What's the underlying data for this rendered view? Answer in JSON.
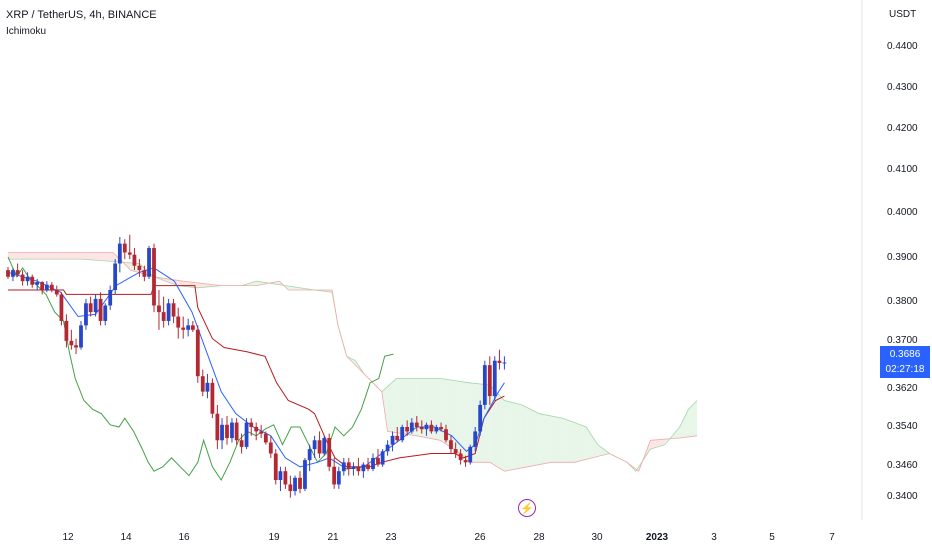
{
  "header": {
    "title": "XRP / TetherUS, 4h, BINANCE",
    "indicator": "Ichimoku"
  },
  "axis": {
    "unit": "USDT",
    "y_ticks": [
      "0.4400",
      "0.4300",
      "0.4200",
      "0.4100",
      "0.4000",
      "0.3900",
      "0.3800",
      "0.3700",
      "0.3620",
      "0.3540",
      "0.3460",
      "0.3400"
    ],
    "x_ticks": [
      "12",
      "14",
      "16",
      "19",
      "21",
      "23",
      "26",
      "28",
      "30",
      "2023",
      "3",
      "5",
      "7"
    ]
  },
  "price_tag": {
    "price": "0.3686",
    "countdown": "02:27:18"
  },
  "colors": {
    "up": "#2847c8",
    "down": "#b22833",
    "tenkan": "#2962ff",
    "kijun": "#b71c1c",
    "chikou": "#43a047",
    "cloud_bull": "#e8f5e9",
    "cloud_bear": "#fde5e5",
    "tag": "#2962ff"
  },
  "chart_data": {
    "type": "candlestick",
    "symbol": "XRP / TetherUS",
    "interval": "4h",
    "exchange": "BINANCE",
    "indicator": "Ichimoku",
    "ylim": [
      0.336,
      0.446
    ],
    "x_day_ticks": [
      {
        "label": "12",
        "x": 12
      },
      {
        "label": "14",
        "x": 14
      },
      {
        "label": "16",
        "x": 16
      },
      {
        "label": "19",
        "x": 19
      },
      {
        "label": "21",
        "x": 21
      },
      {
        "label": "23",
        "x": 23
      },
      {
        "label": "26",
        "x": 26
      },
      {
        "label": "28",
        "x": 28
      },
      {
        "label": "30",
        "x": 30
      },
      {
        "label": "2023",
        "x": 32
      },
      {
        "label": "3",
        "x": 34
      },
      {
        "label": "5",
        "x": 36
      },
      {
        "label": "7",
        "x": 38
      }
    ],
    "candles": [
      [
        10.0,
        0.3895,
        0.3902,
        0.3875,
        0.388
      ],
      [
        10.17,
        0.388,
        0.39,
        0.387,
        0.3895
      ],
      [
        10.33,
        0.3895,
        0.391,
        0.388,
        0.3885
      ],
      [
        10.5,
        0.3885,
        0.3895,
        0.386,
        0.387
      ],
      [
        10.67,
        0.387,
        0.389,
        0.386,
        0.388
      ],
      [
        10.83,
        0.388,
        0.3885,
        0.3855,
        0.3862
      ],
      [
        11.0,
        0.3862,
        0.3875,
        0.385,
        0.3868
      ],
      [
        11.17,
        0.3868,
        0.387,
        0.384,
        0.385
      ],
      [
        11.33,
        0.385,
        0.387,
        0.3845,
        0.3862
      ],
      [
        11.5,
        0.3862,
        0.3868,
        0.3845,
        0.385
      ],
      [
        11.67,
        0.385,
        0.386,
        0.3835,
        0.384
      ],
      [
        11.83,
        0.384,
        0.3845,
        0.377,
        0.378
      ],
      [
        12.0,
        0.378,
        0.3795,
        0.372,
        0.3735
      ],
      [
        12.17,
        0.3735,
        0.376,
        0.3715,
        0.3725
      ],
      [
        12.33,
        0.3725,
        0.374,
        0.3705,
        0.372
      ],
      [
        12.5,
        0.372,
        0.378,
        0.3715,
        0.377
      ],
      [
        12.67,
        0.377,
        0.383,
        0.376,
        0.382
      ],
      [
        12.83,
        0.382,
        0.3835,
        0.379,
        0.38
      ],
      [
        13.0,
        0.38,
        0.384,
        0.379,
        0.383
      ],
      [
        13.17,
        0.383,
        0.3845,
        0.377,
        0.378
      ],
      [
        13.33,
        0.378,
        0.382,
        0.377,
        0.3815
      ],
      [
        13.5,
        0.3815,
        0.386,
        0.3805,
        0.385
      ],
      [
        13.67,
        0.385,
        0.392,
        0.384,
        0.391
      ],
      [
        13.83,
        0.391,
        0.397,
        0.389,
        0.3955
      ],
      [
        14.0,
        0.3955,
        0.3965,
        0.392,
        0.3935
      ],
      [
        14.17,
        0.3935,
        0.3975,
        0.392,
        0.393
      ],
      [
        14.33,
        0.393,
        0.3945,
        0.3895,
        0.3905
      ],
      [
        14.5,
        0.3905,
        0.392,
        0.388,
        0.3895
      ],
      [
        14.67,
        0.3895,
        0.3905,
        0.387,
        0.388
      ],
      [
        14.83,
        0.388,
        0.395,
        0.3875,
        0.3945
      ],
      [
        15.0,
        0.3945,
        0.3955,
        0.38,
        0.3815
      ],
      [
        15.17,
        0.3815,
        0.385,
        0.376,
        0.38
      ],
      [
        15.33,
        0.38,
        0.3835,
        0.3765,
        0.378
      ],
      [
        15.5,
        0.378,
        0.383,
        0.377,
        0.382
      ],
      [
        15.67,
        0.382,
        0.383,
        0.3775,
        0.379
      ],
      [
        15.83,
        0.379,
        0.381,
        0.374,
        0.3765
      ],
      [
        16.0,
        0.3765,
        0.379,
        0.374,
        0.376
      ],
      [
        16.17,
        0.376,
        0.3785,
        0.3745,
        0.377
      ],
      [
        16.33,
        0.377,
        0.378,
        0.3755,
        0.376
      ],
      [
        16.5,
        0.376,
        0.377,
        0.364,
        0.3655
      ],
      [
        16.67,
        0.3655,
        0.367,
        0.361,
        0.362
      ],
      [
        16.83,
        0.362,
        0.366,
        0.3605,
        0.364
      ],
      [
        17.0,
        0.364,
        0.365,
        0.356,
        0.357
      ],
      [
        17.17,
        0.357,
        0.359,
        0.349,
        0.351
      ],
      [
        17.33,
        0.351,
        0.356,
        0.349,
        0.3545
      ],
      [
        17.5,
        0.3545,
        0.3565,
        0.35,
        0.3515
      ],
      [
        17.67,
        0.3515,
        0.356,
        0.3505,
        0.355
      ],
      [
        17.83,
        0.355,
        0.356,
        0.35,
        0.351
      ],
      [
        18.0,
        0.351,
        0.3525,
        0.348,
        0.3495
      ],
      [
        18.17,
        0.3495,
        0.356,
        0.349,
        0.355
      ],
      [
        18.33,
        0.355,
        0.356,
        0.352,
        0.354
      ],
      [
        18.5,
        0.354,
        0.355,
        0.351,
        0.353
      ],
      [
        18.67,
        0.353,
        0.3545,
        0.3515,
        0.3525
      ],
      [
        18.83,
        0.3525,
        0.353,
        0.35,
        0.3505
      ],
      [
        19.0,
        0.3505,
        0.352,
        0.347,
        0.348
      ],
      [
        19.17,
        0.348,
        0.349,
        0.341,
        0.342
      ],
      [
        19.33,
        0.342,
        0.345,
        0.3395,
        0.344
      ],
      [
        19.5,
        0.344,
        0.345,
        0.34,
        0.341
      ],
      [
        19.67,
        0.341,
        0.343,
        0.338,
        0.3395
      ],
      [
        19.83,
        0.3395,
        0.343,
        0.3385,
        0.3425
      ],
      [
        20.0,
        0.3425,
        0.344,
        0.339,
        0.34
      ],
      [
        20.17,
        0.34,
        0.347,
        0.3395,
        0.3465
      ],
      [
        20.33,
        0.3465,
        0.35,
        0.344,
        0.349
      ],
      [
        20.5,
        0.349,
        0.352,
        0.347,
        0.351
      ],
      [
        20.67,
        0.351,
        0.353,
        0.347,
        0.348
      ],
      [
        20.83,
        0.348,
        0.352,
        0.3475,
        0.3515
      ],
      [
        21.0,
        0.3515,
        0.3525,
        0.344,
        0.345
      ],
      [
        21.17,
        0.345,
        0.347,
        0.34,
        0.341
      ],
      [
        21.33,
        0.341,
        0.345,
        0.34,
        0.344
      ],
      [
        21.5,
        0.344,
        0.347,
        0.343,
        0.346
      ],
      [
        21.67,
        0.346,
        0.347,
        0.343,
        0.3445
      ],
      [
        21.83,
        0.3445,
        0.346,
        0.343,
        0.345
      ],
      [
        22.0,
        0.345,
        0.347,
        0.343,
        0.344
      ],
      [
        22.17,
        0.344,
        0.346,
        0.3425,
        0.3455
      ],
      [
        22.33,
        0.3455,
        0.347,
        0.344,
        0.3445
      ],
      [
        22.5,
        0.3445,
        0.348,
        0.344,
        0.347
      ],
      [
        22.67,
        0.347,
        0.349,
        0.345,
        0.3455
      ],
      [
        22.83,
        0.3455,
        0.349,
        0.345,
        0.3485
      ],
      [
        23.0,
        0.3485,
        0.351,
        0.3475,
        0.35
      ],
      [
        23.17,
        0.35,
        0.353,
        0.3485,
        0.352
      ],
      [
        23.33,
        0.352,
        0.354,
        0.3505,
        0.351
      ],
      [
        23.5,
        0.351,
        0.3545,
        0.3505,
        0.354
      ],
      [
        23.67,
        0.354,
        0.3555,
        0.352,
        0.353
      ],
      [
        23.83,
        0.353,
        0.356,
        0.3525,
        0.355
      ],
      [
        24.0,
        0.355,
        0.3565,
        0.353,
        0.354
      ],
      [
        24.17,
        0.354,
        0.3555,
        0.3525,
        0.3535
      ],
      [
        24.33,
        0.3535,
        0.355,
        0.352,
        0.3545
      ],
      [
        24.5,
        0.3545,
        0.3555,
        0.3525,
        0.353
      ],
      [
        24.67,
        0.353,
        0.3545,
        0.3525,
        0.354
      ],
      [
        24.83,
        0.354,
        0.355,
        0.353,
        0.3535
      ],
      [
        25.0,
        0.3535,
        0.3545,
        0.3505,
        0.351
      ],
      [
        25.17,
        0.351,
        0.352,
        0.348,
        0.349
      ],
      [
        25.33,
        0.349,
        0.3505,
        0.347,
        0.348
      ],
      [
        25.5,
        0.348,
        0.349,
        0.3455,
        0.3465
      ],
      [
        25.67,
        0.3465,
        0.3475,
        0.345,
        0.346
      ],
      [
        25.83,
        0.346,
        0.35,
        0.3455,
        0.3495
      ],
      [
        26.0,
        0.3495,
        0.354,
        0.3485,
        0.353
      ],
      [
        26.17,
        0.353,
        0.36,
        0.352,
        0.359
      ],
      [
        26.33,
        0.359,
        0.369,
        0.358,
        0.368
      ],
      [
        26.5,
        0.368,
        0.37,
        0.359,
        0.361
      ],
      [
        26.67,
        0.361,
        0.37,
        0.36,
        0.369
      ],
      [
        26.83,
        0.369,
        0.3715,
        0.367,
        0.3685
      ],
      [
        27.0,
        0.3685,
        0.37,
        0.367,
        0.3686
      ]
    ],
    "tenkan": [
      [
        10.0,
        0.389
      ],
      [
        11.0,
        0.387
      ],
      [
        11.8,
        0.3845
      ],
      [
        12.4,
        0.379
      ],
      [
        13.0,
        0.3795
      ],
      [
        13.7,
        0.386
      ],
      [
        14.5,
        0.389
      ],
      [
        15.0,
        0.39
      ],
      [
        15.7,
        0.387
      ],
      [
        16.3,
        0.38
      ],
      [
        16.8,
        0.371
      ],
      [
        17.3,
        0.362
      ],
      [
        17.8,
        0.357
      ],
      [
        18.4,
        0.354
      ],
      [
        19.0,
        0.352
      ],
      [
        19.5,
        0.347
      ],
      [
        20.0,
        0.345
      ],
      [
        20.6,
        0.346
      ],
      [
        21.0,
        0.347
      ],
      [
        21.6,
        0.3445
      ],
      [
        22.2,
        0.345
      ],
      [
        22.8,
        0.348
      ],
      [
        23.4,
        0.351
      ],
      [
        24.0,
        0.354
      ],
      [
        24.6,
        0.354
      ],
      [
        25.2,
        0.352
      ],
      [
        25.7,
        0.3485
      ],
      [
        26.0,
        0.35
      ],
      [
        26.3,
        0.356
      ],
      [
        26.8,
        0.362
      ],
      [
        27.0,
        0.364
      ]
    ],
    "kijun": [
      [
        10.0,
        0.385
      ],
      [
        11.9,
        0.385
      ],
      [
        12.0,
        0.384
      ],
      [
        14.9,
        0.384
      ],
      [
        15.0,
        0.386
      ],
      [
        16.4,
        0.386
      ],
      [
        16.5,
        0.381
      ],
      [
        17.0,
        0.374
      ],
      [
        17.4,
        0.372
      ],
      [
        18.2,
        0.371
      ],
      [
        18.8,
        0.37
      ],
      [
        19.2,
        0.364
      ],
      [
        19.6,
        0.36
      ],
      [
        20.3,
        0.358
      ],
      [
        20.5,
        0.357
      ],
      [
        20.9,
        0.351
      ],
      [
        21.2,
        0.347
      ],
      [
        21.6,
        0.345
      ],
      [
        22.4,
        0.345
      ],
      [
        22.8,
        0.346
      ],
      [
        23.4,
        0.347
      ],
      [
        24.5,
        0.348
      ],
      [
        25.3,
        0.348
      ],
      [
        25.6,
        0.347
      ],
      [
        26.0,
        0.348
      ],
      [
        26.3,
        0.356
      ],
      [
        26.7,
        0.36
      ],
      [
        27.0,
        0.361
      ]
    ],
    "chikou": [
      [
        10.0,
        0.3925
      ],
      [
        10.3,
        0.388
      ],
      [
        10.5,
        0.39
      ],
      [
        10.7,
        0.388
      ],
      [
        11.0,
        0.386
      ],
      [
        11.3,
        0.384
      ],
      [
        11.6,
        0.38
      ],
      [
        11.9,
        0.378
      ],
      [
        12.1,
        0.371
      ],
      [
        12.3,
        0.365
      ],
      [
        12.6,
        0.36
      ],
      [
        12.9,
        0.358
      ],
      [
        13.2,
        0.357
      ],
      [
        13.5,
        0.3545
      ],
      [
        13.8,
        0.354
      ],
      [
        14.0,
        0.356
      ],
      [
        14.3,
        0.353
      ],
      [
        14.6,
        0.349
      ],
      [
        14.8,
        0.346
      ],
      [
        15.0,
        0.344
      ],
      [
        15.3,
        0.345
      ],
      [
        15.6,
        0.347
      ],
      [
        15.9,
        0.345
      ],
      [
        16.2,
        0.343
      ],
      [
        16.5,
        0.346
      ],
      [
        16.7,
        0.351
      ],
      [
        17.0,
        0.345
      ],
      [
        17.3,
        0.342
      ],
      [
        17.6,
        0.346
      ],
      [
        17.9,
        0.351
      ],
      [
        18.2,
        0.353
      ],
      [
        18.5,
        0.352
      ],
      [
        18.8,
        0.3535
      ],
      [
        19.1,
        0.3545
      ],
      [
        19.4,
        0.35
      ],
      [
        19.7,
        0.354
      ],
      [
        20.0,
        0.354
      ],
      [
        20.3,
        0.35
      ],
      [
        20.6,
        0.346
      ],
      [
        20.9,
        0.348
      ],
      [
        21.2,
        0.354
      ],
      [
        21.5,
        0.352
      ],
      [
        21.8,
        0.354
      ],
      [
        22.1,
        0.358
      ],
      [
        22.4,
        0.364
      ],
      [
        22.7,
        0.365
      ],
      [
        22.9,
        0.37
      ],
      [
        23.2,
        0.3705
      ]
    ],
    "senkou_a": [
      [
        10.0,
        0.392
      ],
      [
        12.5,
        0.392
      ],
      [
        14.5,
        0.391
      ],
      [
        15.0,
        0.388
      ],
      [
        15.8,
        0.386
      ],
      [
        16.5,
        0.3855
      ],
      [
        17.3,
        0.386
      ],
      [
        18.0,
        0.386
      ],
      [
        18.5,
        0.387
      ],
      [
        19.5,
        0.386
      ],
      [
        20.5,
        0.385
      ],
      [
        21.1,
        0.3845
      ],
      [
        21.3,
        0.377
      ],
      [
        21.6,
        0.37
      ],
      [
        21.9,
        0.369
      ],
      [
        22.2,
        0.366
      ],
      [
        22.5,
        0.364
      ],
      [
        22.8,
        0.362
      ],
      [
        23.3,
        0.365
      ],
      [
        24.0,
        0.365
      ],
      [
        24.8,
        0.365
      ],
      [
        25.8,
        0.364
      ],
      [
        26.5,
        0.3635
      ],
      [
        27.0,
        0.36
      ],
      [
        27.6,
        0.359
      ],
      [
        28.2,
        0.357
      ],
      [
        29.0,
        0.356
      ],
      [
        29.8,
        0.354
      ],
      [
        30.2,
        0.35
      ],
      [
        30.6,
        0.348
      ],
      [
        31.2,
        0.346
      ],
      [
        31.5,
        0.344
      ],
      [
        32.0,
        0.349
      ],
      [
        32.5,
        0.35
      ],
      [
        33.0,
        0.354
      ],
      [
        33.3,
        0.358
      ],
      [
        33.6,
        0.36
      ]
    ],
    "senkou_b": [
      [
        10.0,
        0.3935
      ],
      [
        12.4,
        0.3935
      ],
      [
        13.6,
        0.3935
      ],
      [
        14.2,
        0.3895
      ],
      [
        15.0,
        0.388
      ],
      [
        16.0,
        0.387
      ],
      [
        17.3,
        0.386
      ],
      [
        18.5,
        0.386
      ],
      [
        19.3,
        0.387
      ],
      [
        19.6,
        0.385
      ],
      [
        21.1,
        0.385
      ],
      [
        21.3,
        0.377
      ],
      [
        21.6,
        0.37
      ],
      [
        22.2,
        0.366
      ],
      [
        22.8,
        0.362
      ],
      [
        23.0,
        0.353
      ],
      [
        24.0,
        0.352
      ],
      [
        24.8,
        0.351
      ],
      [
        25.5,
        0.348
      ],
      [
        25.8,
        0.346
      ],
      [
        26.5,
        0.346
      ],
      [
        27.0,
        0.344
      ],
      [
        27.8,
        0.345
      ],
      [
        28.6,
        0.346
      ],
      [
        29.4,
        0.346
      ],
      [
        30.0,
        0.347
      ],
      [
        30.6,
        0.348
      ],
      [
        31.2,
        0.346
      ],
      [
        31.6,
        0.344
      ],
      [
        32.0,
        0.351
      ],
      [
        33.0,
        0.3515
      ],
      [
        33.6,
        0.352
      ]
    ],
    "last_price": 0.3686,
    "countdown": "02:27:18",
    "event_marker_x": 27.75
  }
}
